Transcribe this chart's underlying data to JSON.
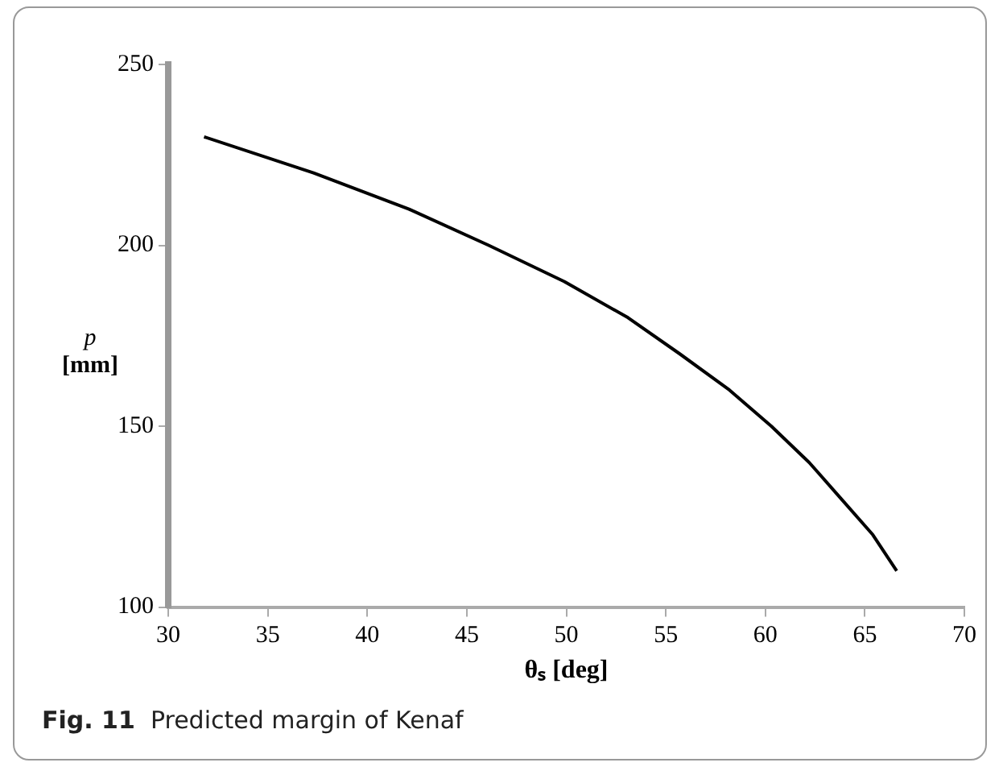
{
  "chart_data": {
    "type": "line",
    "xlabel": "θₛ [deg]",
    "ylabel": "p [mm]",
    "x": [
      31.8,
      37.3,
      42.1,
      46.1,
      49.9,
      53.1,
      55.7,
      58.2,
      60.3,
      62.2,
      63.8,
      65.4,
      66.6
    ],
    "series": [
      {
        "color": "#000000",
        "values": [
          230,
          220,
          210,
          200,
          190,
          180,
          170,
          160,
          150,
          140,
          130,
          120,
          110
        ]
      }
    ],
    "xlim": [
      30,
      70
    ],
    "xticks": [
      30,
      35,
      40,
      45,
      50,
      55,
      60,
      65,
      70
    ],
    "ylim": [
      100,
      250
    ],
    "yticks": [
      100,
      150,
      200,
      250
    ],
    "grid": false,
    "legend": false,
    "marker": "none",
    "line_style": "solid",
    "annotations": [
      "Fig. 11  Predicted margin of Kenaf"
    ]
  }
}
